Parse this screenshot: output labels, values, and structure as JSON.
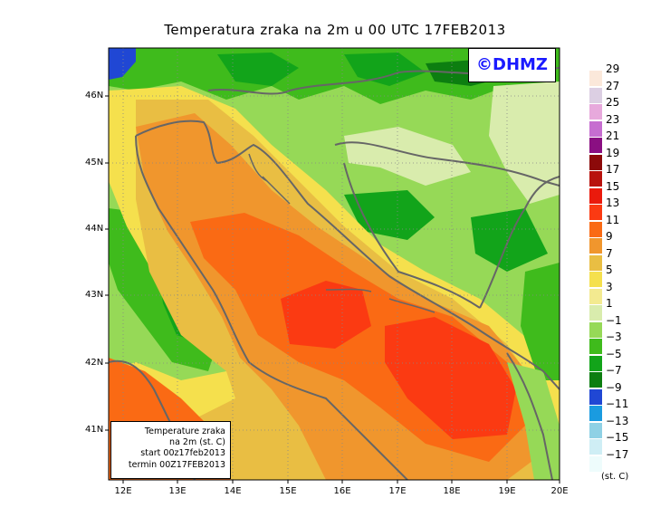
{
  "title": "Temperatura zraka na 2m u 00 UTC 17FEB2013",
  "logo": "©DHMZ",
  "info_box": {
    "line1": "Temperature zraka",
    "line2": "na 2m (st. C)",
    "line3": "start 00z17feb2013",
    "line4": "termin 00Z17FEB2013"
  },
  "lat_labels": [
    "46N",
    "45N",
    "44N",
    "43N",
    "42N",
    "41N"
  ],
  "lon_labels": [
    "12E",
    "13E",
    "14E",
    "15E",
    "16E",
    "17E",
    "18E",
    "19E",
    "20E"
  ],
  "legend": {
    "units": "(st. C)",
    "labels": [
      "29",
      "27",
      "25",
      "23",
      "21",
      "19",
      "17",
      "15",
      "13",
      "11",
      "9",
      "7",
      "5",
      "3",
      "1",
      "−1",
      "−3",
      "−5",
      "−7",
      "−9",
      "−11",
      "−13",
      "−15",
      "−17"
    ],
    "colors": [
      "#fbe8da",
      "#dccfe3",
      "#e7a9dc",
      "#c66dd0",
      "#8a0f82",
      "#8c0a0a",
      "#b8120d",
      "#ea1a0c",
      "#fb3a12",
      "#fa6a14",
      "#f0962d",
      "#e9be43",
      "#f5e04d",
      "#f3ea90",
      "#d9ecad",
      "#96d957",
      "#3fbb1c",
      "#12a41a",
      "#0c7e10",
      "#2047d4",
      "#1a9be0",
      "#8fd1e5",
      "#cfeef5",
      "#eefcfc"
    ]
  },
  "colors": {
    "cold_green": "#12a41a",
    "mid_green": "#3fbb1c",
    "light_green": "#96d957",
    "pale_green": "#d9ecad",
    "pale_yellow": "#f3ea90",
    "yellow": "#f5e04d",
    "gold": "#e9be43",
    "orange": "#f0962d",
    "dark_orange": "#fa6a14",
    "red_orange": "#fb3a12",
    "blue": "#2047d4",
    "coast": "#666666"
  }
}
